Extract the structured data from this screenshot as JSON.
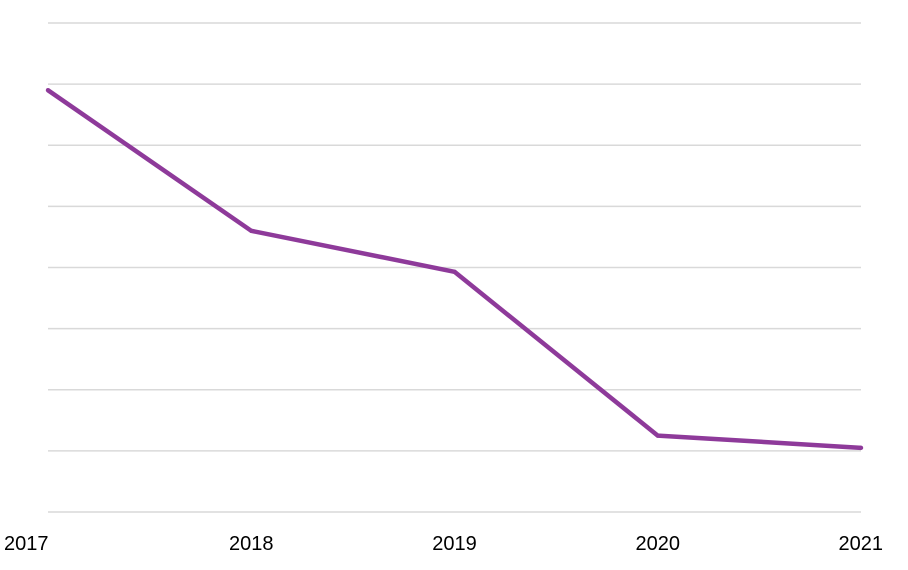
{
  "chart_data": {
    "type": "line",
    "categories": [
      "2017",
      "2018",
      "2019",
      "2020",
      "2021"
    ],
    "series": [
      {
        "values": [
          6.9,
          4.6,
          3.93,
          1.25,
          1.05
        ],
        "color": "#8e3a9a"
      }
    ],
    "ylim": [
      0,
      8
    ],
    "y_gridline_step": 1,
    "grid": true,
    "legend": "none",
    "title": "",
    "xlabel": "",
    "ylabel": ""
  }
}
